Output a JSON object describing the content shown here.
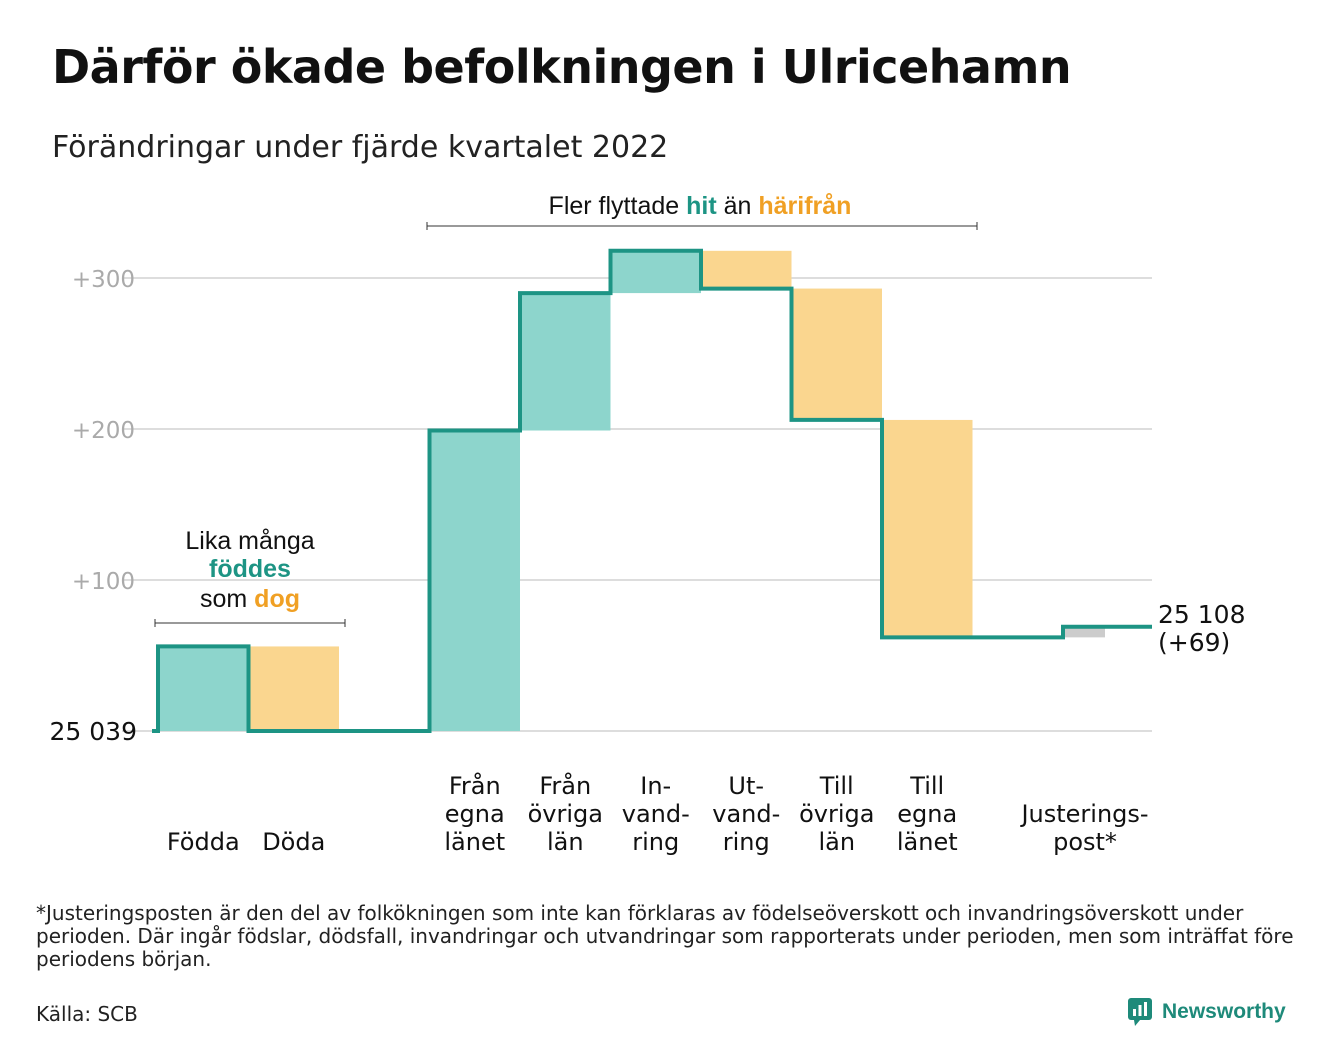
{
  "title": "Därför ökade befolkningen i Ulricehamn",
  "subtitle": "Förändringar under fjärde kvartalet 2022",
  "colors": {
    "in": "#8dd5cc",
    "out": "#fad68f",
    "adjust": "#cccccc",
    "line": "#1d9484",
    "hit_text": "#1d9484",
    "harifran_text": "#f0a024",
    "grid": "#dddddd",
    "tick": "#aaaaaa"
  },
  "annotations": {
    "birth": {
      "line1": "Lika många",
      "line2": "föddes",
      "line3_pre": "som ",
      "line3_em": "dog"
    },
    "migration": {
      "pre": "Fler flyttade ",
      "hit": "hit",
      "mid": " än ",
      "harifran": "härifrån"
    }
  },
  "chart_data": {
    "type": "waterfall",
    "start_label": "25 039",
    "end_label": "25 108",
    "end_change_label": "(+69)",
    "y_ticks": [
      "+100",
      "+200",
      "+300"
    ],
    "ylim": [
      0,
      320
    ],
    "grid": true,
    "steps": [
      {
        "label": [
          "Födda"
        ],
        "delta": 56,
        "kind": "in"
      },
      {
        "label": [
          "Döda"
        ],
        "delta": -56,
        "kind": "out"
      },
      {
        "label": [],
        "delta": 0,
        "kind": "gap"
      },
      {
        "label": [
          "Från",
          "egna",
          "länet"
        ],
        "delta": 199,
        "kind": "in"
      },
      {
        "label": [
          "Från",
          "övriga",
          "län"
        ],
        "delta": 91,
        "kind": "in"
      },
      {
        "label": [
          "In-",
          "vand-",
          "ring"
        ],
        "delta": 28,
        "kind": "in"
      },
      {
        "label": [
          "Ut-",
          "vand-",
          "ring"
        ],
        "delta": -25,
        "kind": "out"
      },
      {
        "label": [
          "Till",
          "övriga",
          "län"
        ],
        "delta": -87,
        "kind": "out"
      },
      {
        "label": [
          "Till",
          "egna",
          "länet"
        ],
        "delta": -144,
        "kind": "out"
      },
      {
        "label": [],
        "delta": 0,
        "kind": "gap"
      },
      {
        "label": [
          "Justerings-",
          "post*"
        ],
        "delta": 7,
        "kind": "adjust"
      }
    ]
  },
  "footnote": "*Justeringsposten är den del av folkökningen som inte kan förklaras av födelseöverskott och invandringsöverskott under perioden. Där ingår födslar, dödsfall, invandringar och utvandringar som rapporterats under perioden, men som inträffat före periodens början.",
  "source": "Källa: SCB",
  "brand": "Newsworthy"
}
